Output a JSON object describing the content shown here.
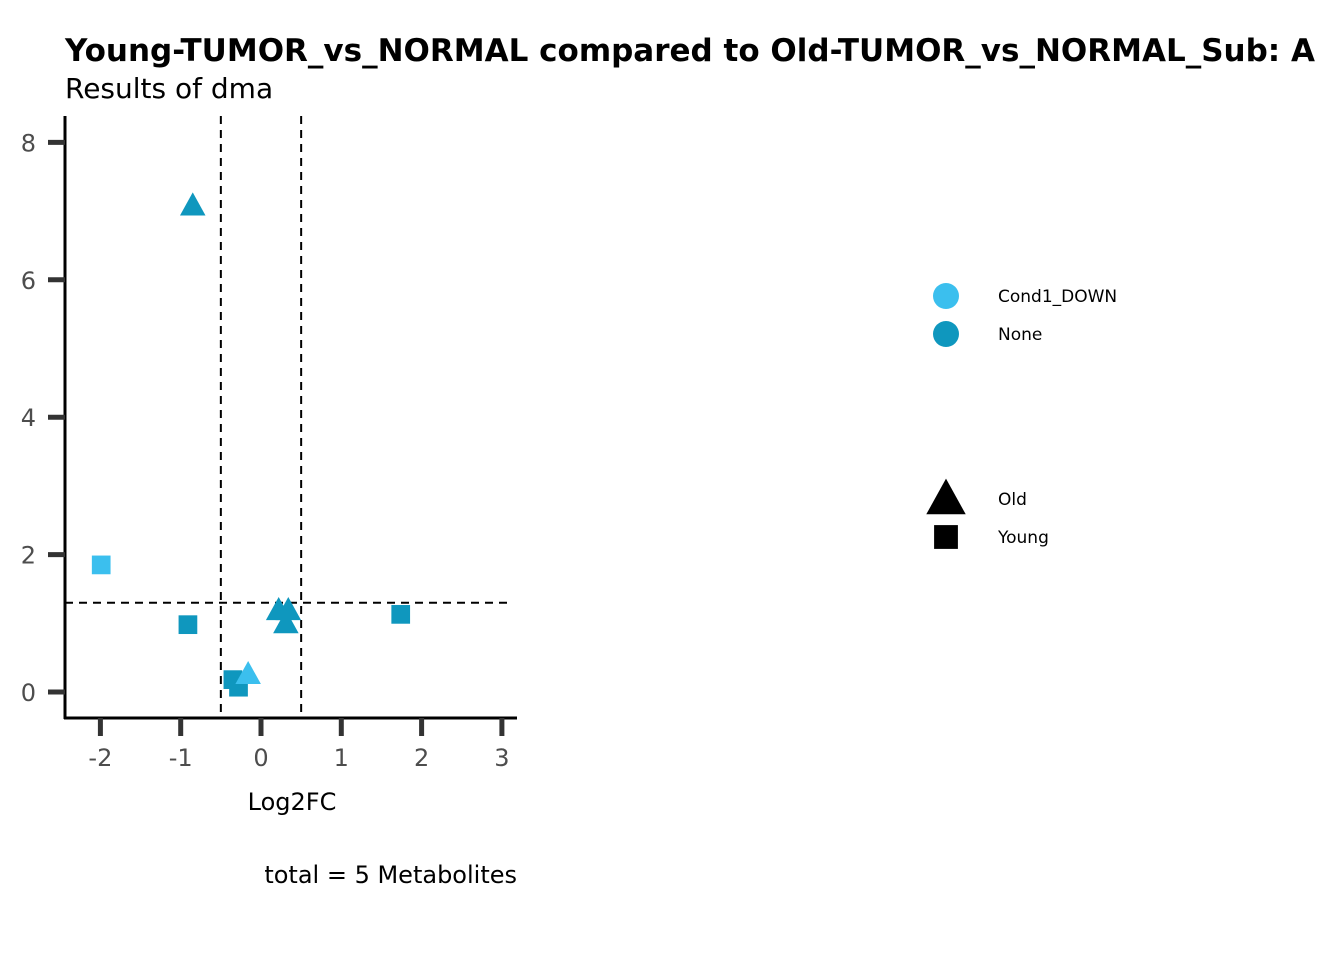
{
  "chart_data": {
    "type": "scatter",
    "title": "Young-TUMOR_vs_NORMAL compared to Old-TUMOR_vs_NORMAL_Sub: A",
    "subtitle": "Results of dma",
    "xlabel": "Log2FC",
    "ylabel": "",
    "caption": "total = 5 Metabolites",
    "xlim": [
      -2.45,
      3.15
    ],
    "ylim": [
      -0.4,
      8.4
    ],
    "x_ticks": [
      -2,
      -1,
      0,
      1,
      2,
      3
    ],
    "y_ticks": [
      0,
      2,
      4,
      6,
      8
    ],
    "x_tick_labels": [
      "-2",
      "-1",
      "0",
      "1",
      "2",
      "3"
    ],
    "y_tick_labels": [
      "0",
      "2",
      "4",
      "6",
      "8"
    ],
    "grid": false,
    "reference_lines": {
      "vertical": [
        -0.5,
        0.5
      ],
      "horizontal": [
        1.3
      ],
      "style": "dashed"
    },
    "color_legend": [
      {
        "label": "Cond1_DOWN",
        "color": "#3bbfee"
      },
      {
        "label": "None",
        "color": "#0f97be"
      }
    ],
    "shape_legend": [
      {
        "label": "Old",
        "shape": "triangle"
      },
      {
        "label": "Young",
        "shape": "square"
      }
    ],
    "legend_position": "right",
    "points": [
      {
        "x": -1.99,
        "y": 1.85,
        "group": "Cond1_DOWN",
        "shape": "Young"
      },
      {
        "x": -0.91,
        "y": 0.98,
        "group": "None",
        "shape": "Young"
      },
      {
        "x": -0.85,
        "y": 7.08,
        "group": "None",
        "shape": "Old"
      },
      {
        "x": -0.35,
        "y": 0.18,
        "group": "None",
        "shape": "Young"
      },
      {
        "x": -0.28,
        "y": 0.07,
        "group": "None",
        "shape": "Young"
      },
      {
        "x": -0.16,
        "y": 0.26,
        "group": "Cond1_DOWN",
        "shape": "Old"
      },
      {
        "x": 0.22,
        "y": 1.19,
        "group": "None",
        "shape": "Old"
      },
      {
        "x": 0.34,
        "y": 1.19,
        "group": "None",
        "shape": "Old"
      },
      {
        "x": 0.31,
        "y": 1.0,
        "group": "None",
        "shape": "Old"
      },
      {
        "x": 1.74,
        "y": 1.13,
        "group": "None",
        "shape": "Young"
      }
    ]
  }
}
